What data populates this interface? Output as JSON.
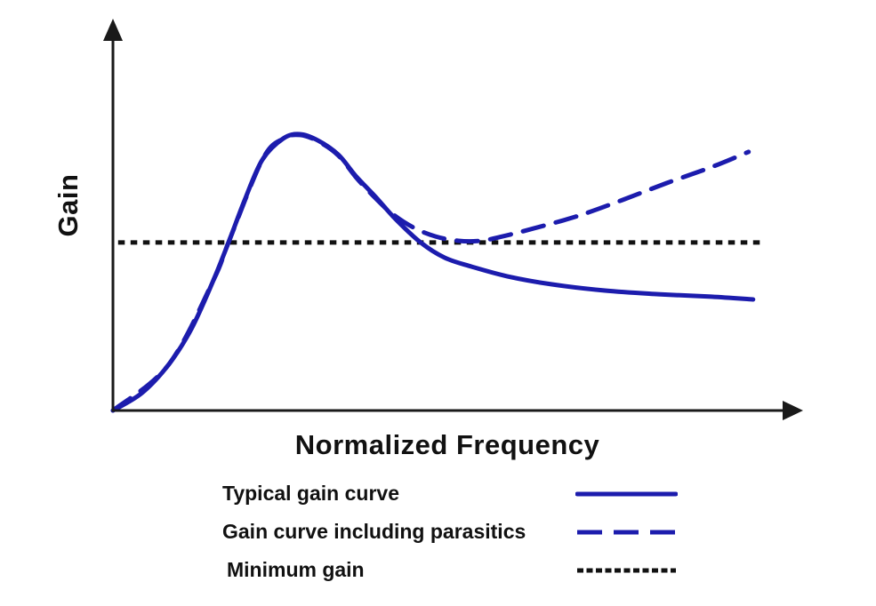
{
  "figure": {
    "background": "#ffffff"
  },
  "chart_data": {
    "type": "line",
    "title": "",
    "xlabel": "Normalized Frequency",
    "ylabel": "Gain",
    "grid": false,
    "axes": {
      "style": "arrowed, no tick marks, no numeric scale",
      "x_range_normalized": [
        0,
        1
      ],
      "y_range_normalized": [
        0,
        1
      ],
      "color": "#1a1a1a"
    },
    "legend_position": "below-left",
    "colors": {
      "curve_blue": "#1c1cad",
      "reference_black": "#111111",
      "text": "#111111"
    },
    "series": [
      {
        "name": "Typical gain curve",
        "style": "solid",
        "color": "#1c1cad",
        "description": "Rises from origin to a resonant peak, then rolls off and flattens below the minimum-gain line",
        "points": [
          [
            0.0,
            0.0
          ],
          [
            0.045,
            0.064
          ],
          [
            0.086,
            0.167
          ],
          [
            0.121,
            0.296
          ],
          [
            0.155,
            0.473
          ],
          [
            0.178,
            0.608
          ],
          [
            0.203,
            0.762
          ],
          [
            0.23,
            0.907
          ],
          [
            0.262,
            0.984
          ],
          [
            0.288,
            1.0
          ],
          [
            0.316,
            0.977
          ],
          [
            0.347,
            0.926
          ],
          [
            0.374,
            0.849
          ],
          [
            0.405,
            0.772
          ],
          [
            0.436,
            0.691
          ],
          [
            0.474,
            0.608
          ],
          [
            0.511,
            0.553
          ],
          [
            0.552,
            0.521
          ],
          [
            0.607,
            0.486
          ],
          [
            0.675,
            0.457
          ],
          [
            0.758,
            0.434
          ],
          [
            0.84,
            0.421
          ],
          [
            0.922,
            0.412
          ],
          [
            0.986,
            0.402
          ]
        ]
      },
      {
        "name": "Gain curve including parasitics",
        "style": "dashed",
        "color": "#1c1cad",
        "description": "Tracks the typical curve through the peak, dips to touch the minimum-gain line, then rises again at high frequency",
        "points": [
          [
            0.0,
            0.0
          ],
          [
            0.086,
            0.167
          ],
          [
            0.155,
            0.473
          ],
          [
            0.178,
            0.608
          ],
          [
            0.23,
            0.907
          ],
          [
            0.262,
            0.984
          ],
          [
            0.288,
            0.997
          ],
          [
            0.316,
            0.974
          ],
          [
            0.347,
            0.923
          ],
          [
            0.374,
            0.845
          ],
          [
            0.399,
            0.781
          ],
          [
            0.429,
            0.714
          ],
          [
            0.463,
            0.662
          ],
          [
            0.497,
            0.63
          ],
          [
            0.532,
            0.614
          ],
          [
            0.566,
            0.614
          ],
          [
            0.6,
            0.63
          ],
          [
            0.648,
            0.659
          ],
          [
            0.716,
            0.704
          ],
          [
            0.785,
            0.762
          ],
          [
            0.853,
            0.823
          ],
          [
            0.922,
            0.881
          ],
          [
            0.979,
            0.936
          ]
        ]
      },
      {
        "name": "Minimum gain",
        "style": "dotted",
        "color": "#111111",
        "description": "Horizontal reference line at the minimum acceptable gain level",
        "points": [
          [
            0.008,
            0.608
          ],
          [
            1.0,
            0.608
          ]
        ]
      }
    ]
  },
  "legend": {
    "rows": [
      {
        "label": "Typical gain curve"
      },
      {
        "label": "Gain curve including parasitics"
      },
      {
        "label": "Minimum gain"
      }
    ]
  }
}
